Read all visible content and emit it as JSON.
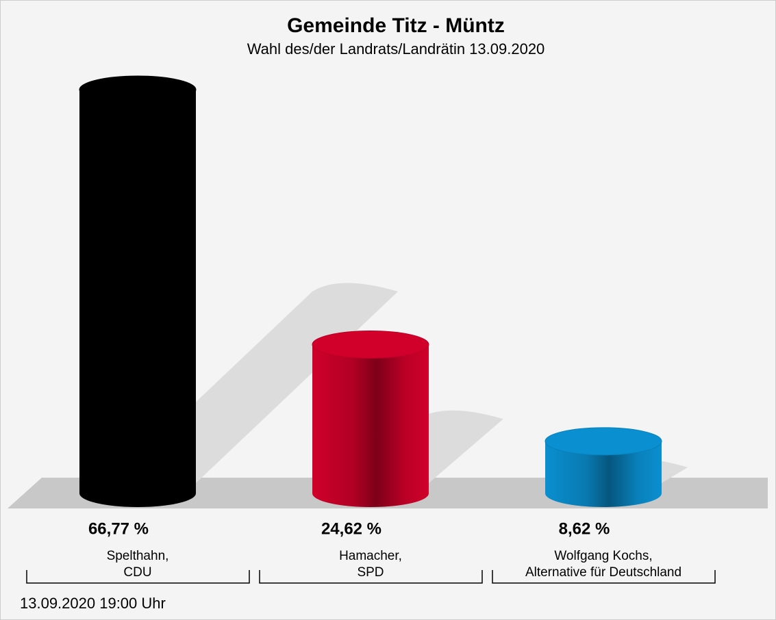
{
  "chart_data": {
    "type": "cylinder-bar",
    "title": "Gemeinde Titz - Müntz",
    "subtitle": "Wahl des/der Landrats/Landrätin 13.09.2020",
    "categories": [
      "Spelthahn,\nCDU",
      "Hamacher,\nSPD",
      "Wolfgang Kochs,\nAlternative für Deutschland"
    ],
    "values": [
      66.77,
      24.62,
      8.62
    ],
    "value_labels": [
      "66,77 %",
      "24,62 %",
      "8,62 %"
    ],
    "colors": [
      "#000000",
      "#d0002a",
      "#0a8fd0"
    ],
    "footnote": "13.09.2020 19:00 Uhr"
  }
}
